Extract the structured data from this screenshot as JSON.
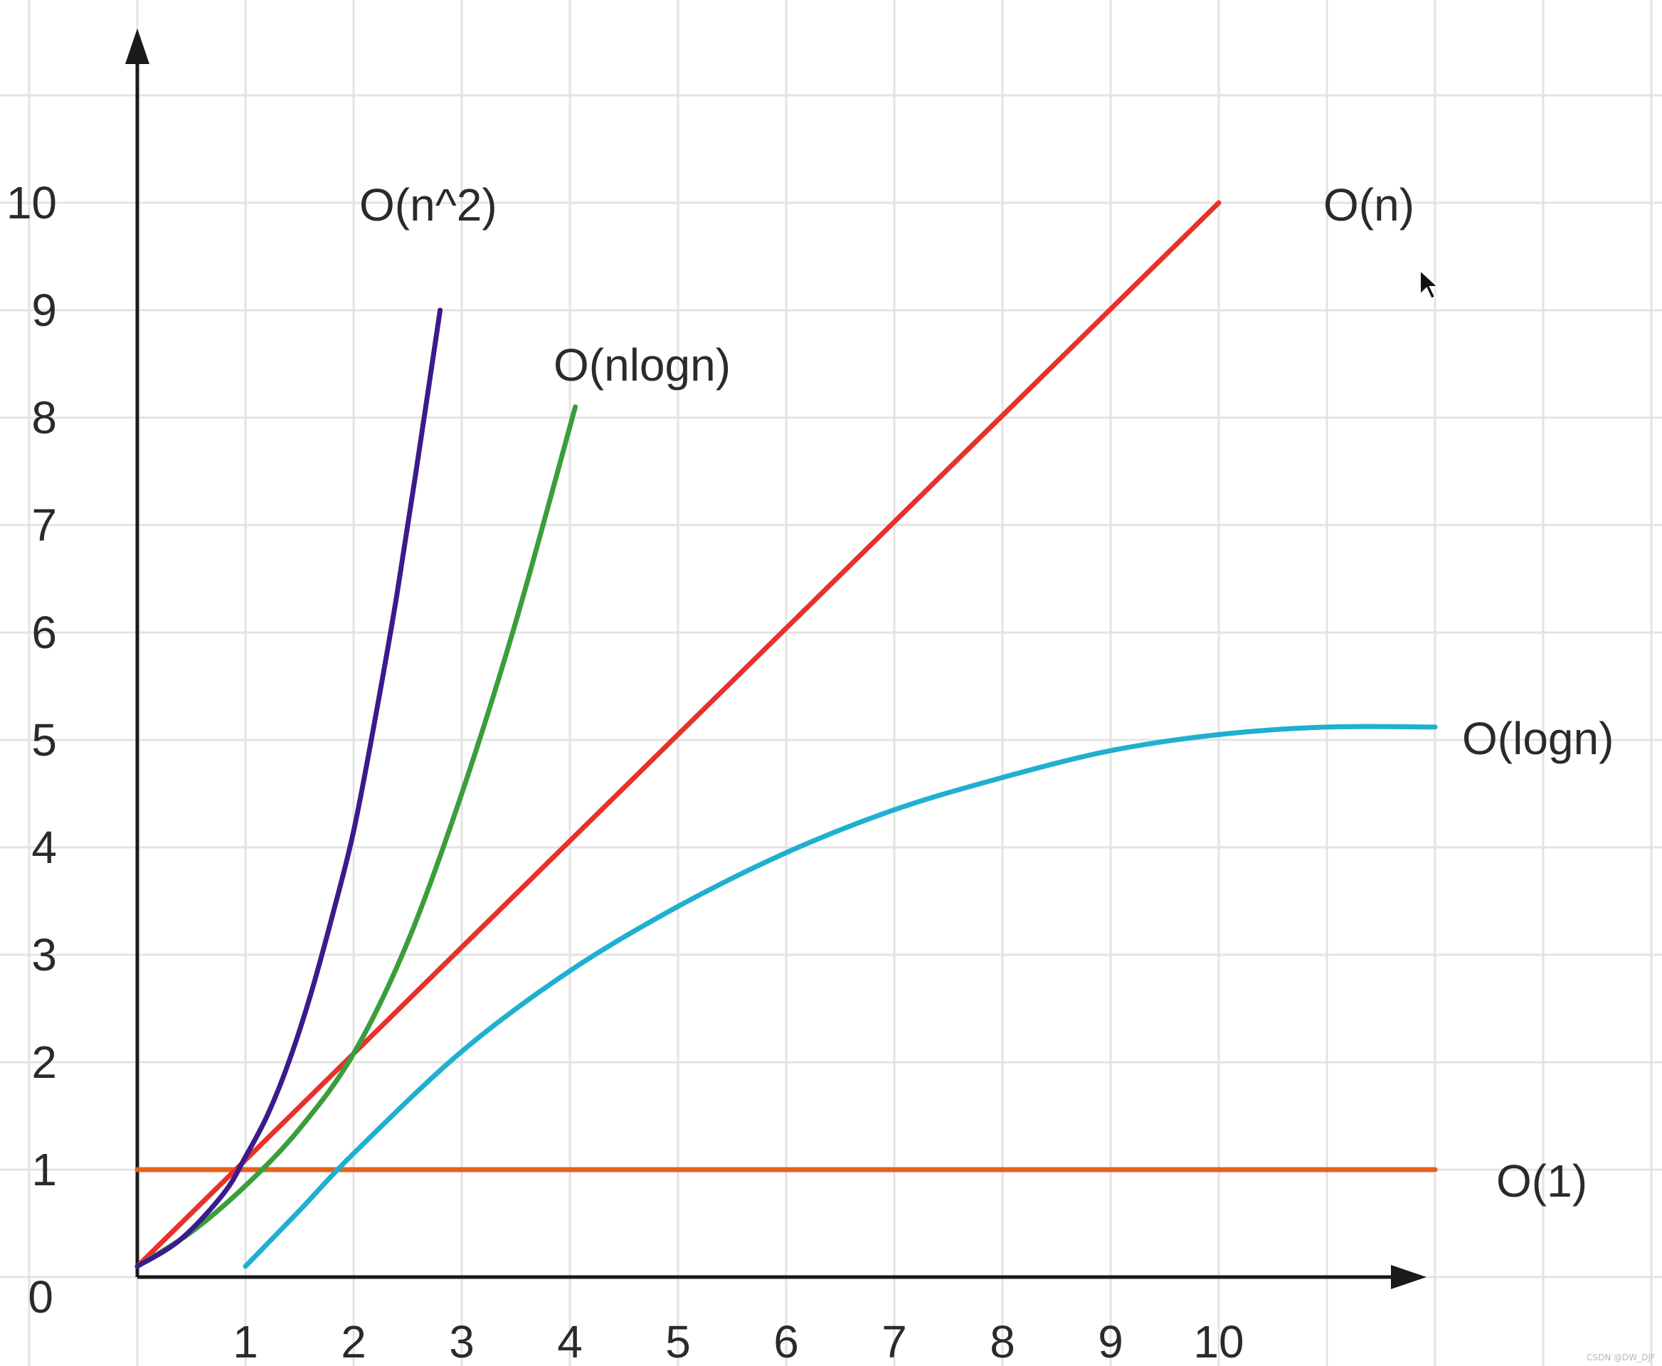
{
  "chart_data": {
    "type": "line",
    "title": "",
    "xlabel": "",
    "ylabel": "",
    "xlim": [
      0,
      12
    ],
    "ylim": [
      0,
      11
    ],
    "grid": true,
    "x_ticks": [
      "1",
      "2",
      "3",
      "4",
      "5",
      "6",
      "7",
      "8",
      "9",
      "10"
    ],
    "y_ticks": [
      "0",
      "1",
      "2",
      "3",
      "4",
      "5",
      "6",
      "7",
      "8",
      "9",
      "10"
    ],
    "series": [
      {
        "name": "O(n^2)",
        "color": "#3b1a8c",
        "x": [
          0,
          0.4,
          0.8,
          1.0,
          1.2,
          1.4,
          1.6,
          1.8,
          2.0,
          2.2,
          2.4,
          2.6,
          2.8
        ],
        "y": [
          0.1,
          0.35,
          0.78,
          1.12,
          1.5,
          2.0,
          2.62,
          3.35,
          4.15,
          5.2,
          6.35,
          7.65,
          9.0
        ]
      },
      {
        "name": "O(nlogn)",
        "color": "#3a9e3a",
        "x": [
          0,
          0.5,
          1.0,
          1.5,
          2.0,
          2.5,
          3.0,
          3.5,
          4.05
        ],
        "y": [
          0.1,
          0.42,
          0.85,
          1.38,
          2.08,
          3.12,
          4.5,
          6.1,
          8.1
        ]
      },
      {
        "name": "O(n)",
        "color": "#e8312b",
        "x": [
          0,
          10
        ],
        "y": [
          0.1,
          10
        ]
      },
      {
        "name": "O(logn)",
        "color": "#1fb0d0",
        "x": [
          1.0,
          1.5,
          2.0,
          3.0,
          4.0,
          5.0,
          6.0,
          7.0,
          8.0,
          9.0,
          10.0,
          11.0,
          12.0
        ],
        "y": [
          0.1,
          0.62,
          1.15,
          2.1,
          2.85,
          3.45,
          3.95,
          4.35,
          4.65,
          4.9,
          5.05,
          5.12,
          5.12
        ]
      },
      {
        "name": "O(1)",
        "color": "#e8611a",
        "x": [
          0,
          12
        ],
        "y": [
          1,
          1
        ]
      }
    ],
    "watermark": "CSDN @DW_DJF"
  }
}
